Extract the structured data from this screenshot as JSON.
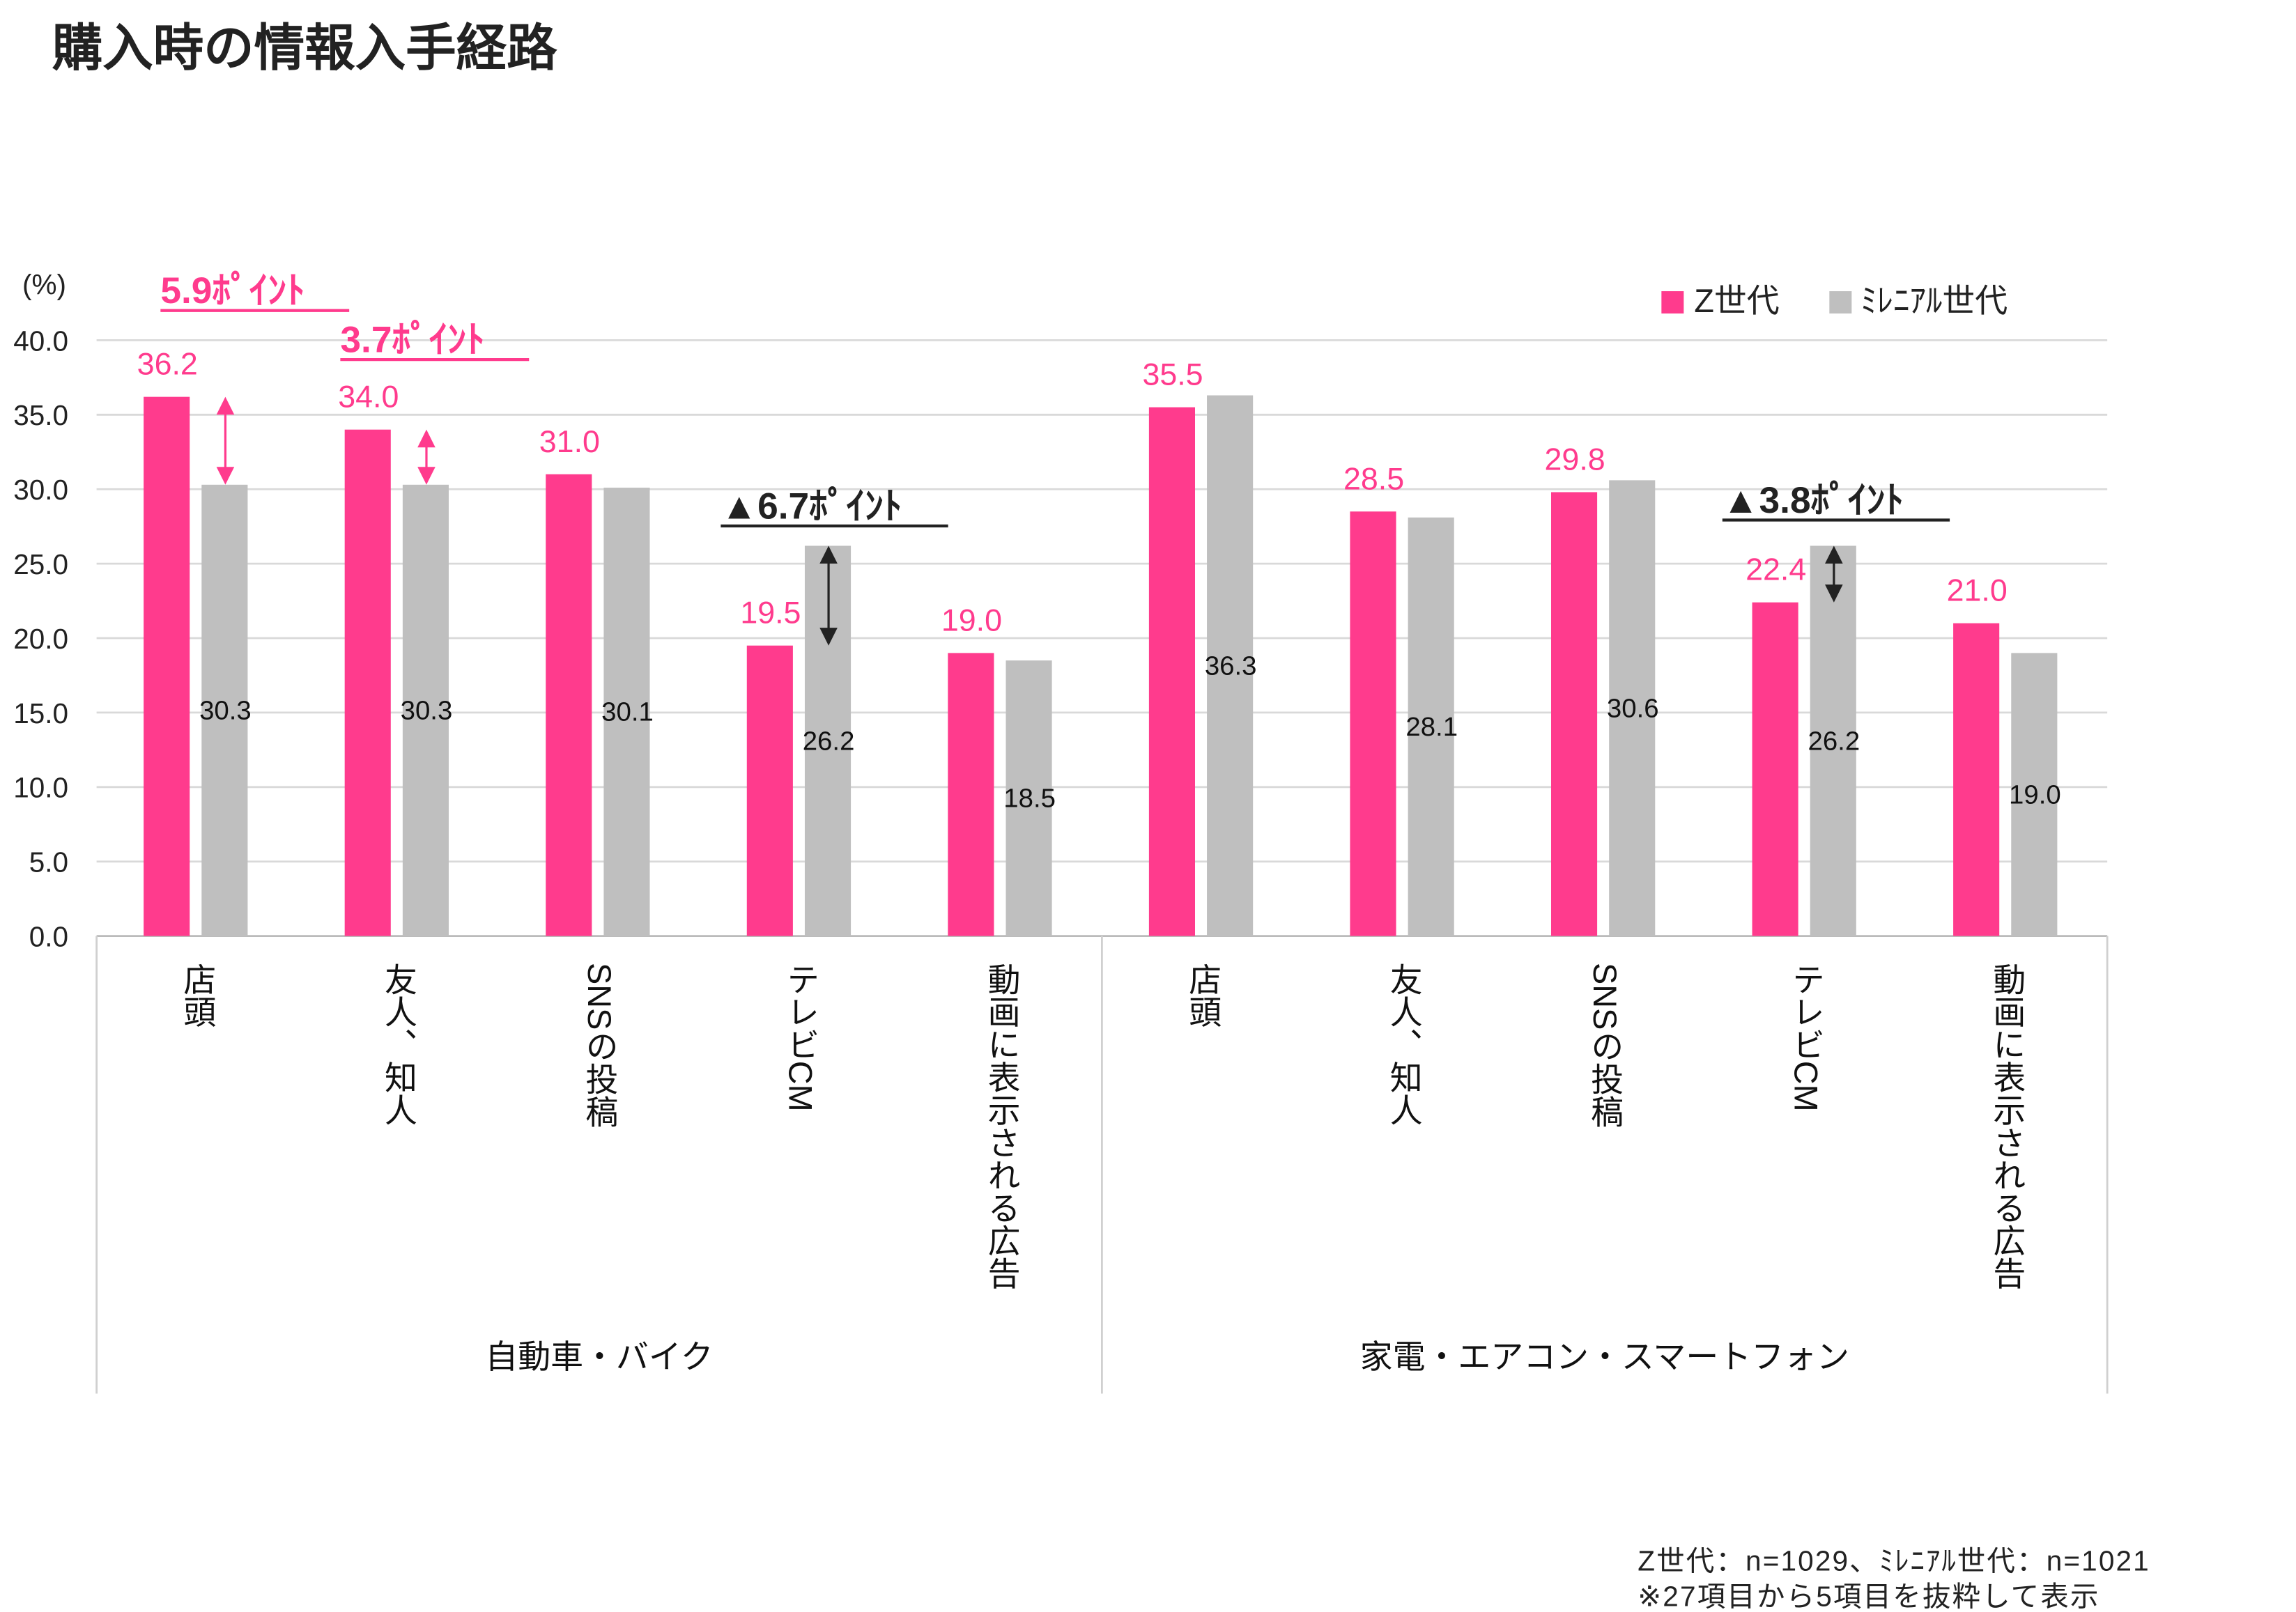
{
  "title": "購入時の情報入手経路",
  "chart_data": {
    "type": "bar",
    "title": "購入時の情報入手経路",
    "ylabel": "(%)",
    "ylim": [
      0,
      40
    ],
    "yticks": [
      "0.0",
      "5.0",
      "10.0",
      "15.0",
      "20.0",
      "25.0",
      "30.0",
      "35.0",
      "40.0"
    ],
    "grid": true,
    "legend_position": "top-right",
    "groups": [
      "自動車・バイク",
      "家電・エアコン・スマートフォン"
    ],
    "categories": [
      "店頭",
      "友人、知人",
      "SNSの投稿",
      "テレビCM",
      "動画に表示される広告",
      "店頭",
      "友人、知人",
      "SNSの投稿",
      "テレビCM",
      "動画に表示される広告"
    ],
    "series": [
      {
        "name": "Z世代",
        "color": "#ff3b8d",
        "values": [
          36.2,
          34.0,
          31.0,
          19.5,
          19.0,
          35.5,
          28.5,
          29.8,
          22.4,
          21.0
        ],
        "labels": [
          "36.2",
          "34.0",
          "31.0",
          "19.5",
          "19.0",
          "35.5",
          "28.5",
          "29.8",
          "22.4",
          "21.0"
        ]
      },
      {
        "name": "ﾐﾚﾆｱﾙ世代",
        "color": "#bfbfbf",
        "values": [
          30.3,
          30.3,
          30.1,
          26.2,
          18.5,
          36.3,
          28.1,
          30.6,
          26.2,
          19.0
        ],
        "labels": [
          "30.3",
          "30.3",
          "30.1",
          "26.2",
          "18.5",
          "36.3",
          "28.1",
          "30.6",
          "26.2",
          "19.0"
        ]
      }
    ],
    "annotations": [
      {
        "text": "5.9ﾎﾟｲﾝﾄ",
        "category_index": 0,
        "color": "#ff3b8d"
      },
      {
        "text": "3.7ﾎﾟｲﾝﾄ",
        "category_index": 1,
        "color": "#ff3b8d"
      },
      {
        "text": "▲6.7ﾎﾟｲﾝﾄ",
        "category_index": 3,
        "color": "#222222"
      },
      {
        "text": "▲3.8ﾎﾟｲﾝﾄ",
        "category_index": 8,
        "color": "#222222"
      }
    ]
  },
  "notes": [
    "Z世代：n=1029、ﾐﾚﾆｱﾙ世代：n=1021",
    "※27項目から5項目を抜粋して表示"
  ]
}
